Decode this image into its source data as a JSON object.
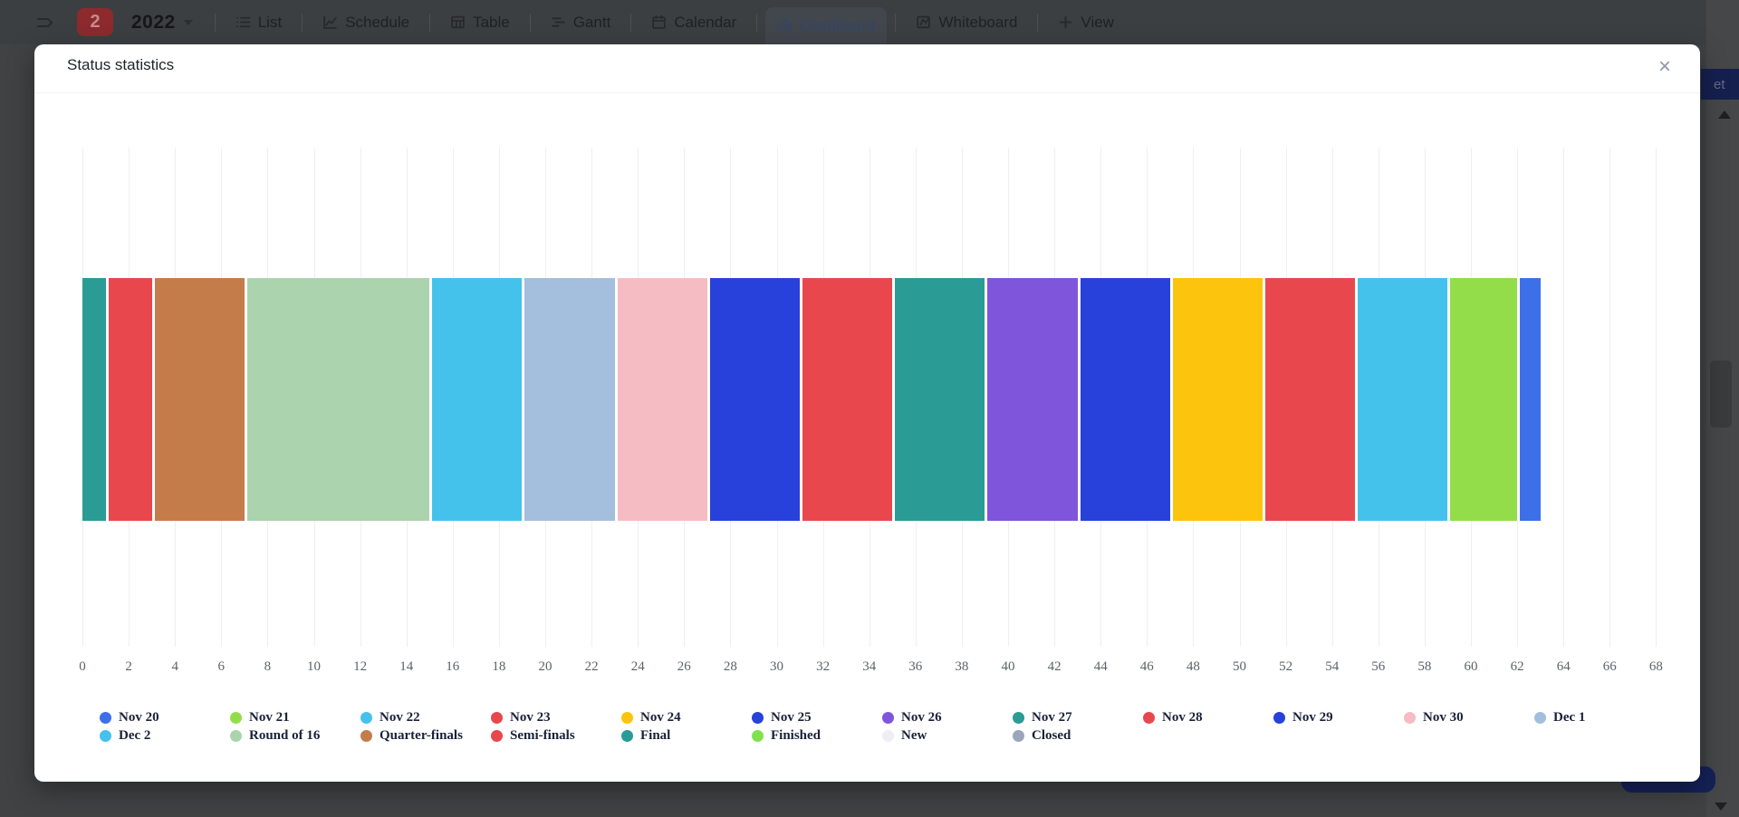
{
  "toolbar": {
    "badge_count": "2",
    "board_title": "2022",
    "tabs": [
      {
        "label": "List",
        "icon": "list-icon",
        "active": false
      },
      {
        "label": "Schedule",
        "icon": "schedule-icon",
        "active": false
      },
      {
        "label": "Table",
        "icon": "table-icon",
        "active": false
      },
      {
        "label": "Gantt",
        "icon": "gantt-icon",
        "active": false
      },
      {
        "label": "Calendar",
        "icon": "calendar-icon",
        "active": false
      },
      {
        "label": "Dashboard",
        "icon": "dashboard-icon",
        "active": true
      },
      {
        "label": "Whiteboard",
        "icon": "whiteboard-icon",
        "active": false
      }
    ],
    "add_view_label": "View"
  },
  "right_edge": {
    "button_text_partial": "et"
  },
  "modal": {
    "title": "Status statistics",
    "close_glyph": "×"
  },
  "chart_data": {
    "type": "bar",
    "orientation": "horizontal-stacked",
    "title": "Status statistics",
    "grid": true,
    "legend_position": "bottom",
    "xlim": [
      0,
      68
    ],
    "x_ticks": [
      0,
      2,
      4,
      6,
      8,
      10,
      12,
      14,
      16,
      18,
      20,
      22,
      24,
      26,
      28,
      30,
      32,
      34,
      36,
      38,
      40,
      42,
      44,
      46,
      48,
      50,
      52,
      54,
      56,
      58,
      60,
      62,
      64,
      66,
      68
    ],
    "total_stacked_value": 63,
    "segments": [
      {
        "name": "Final",
        "value": 1,
        "color": "#2A9B95"
      },
      {
        "name": "Semi-finals",
        "value": 2,
        "color": "#E8484D"
      },
      {
        "name": "Quarter-finals",
        "value": 4,
        "color": "#C47C4B"
      },
      {
        "name": "Round of 16",
        "value": 8,
        "color": "#ABD3AE"
      },
      {
        "name": "Dec 2",
        "value": 4,
        "color": "#45C2EC"
      },
      {
        "name": "Dec 1",
        "value": 4,
        "color": "#A3BFDD"
      },
      {
        "name": "Nov 30",
        "value": 4,
        "color": "#F5BDC3"
      },
      {
        "name": "Nov 29",
        "value": 4,
        "color": "#2841DA"
      },
      {
        "name": "Nov 28",
        "value": 4,
        "color": "#E8484D"
      },
      {
        "name": "Nov 27",
        "value": 4,
        "color": "#2A9B95"
      },
      {
        "name": "Nov 26",
        "value": 4,
        "color": "#7F55DB"
      },
      {
        "name": "Nov 25",
        "value": 4,
        "color": "#2841DA"
      },
      {
        "name": "Nov 24",
        "value": 4,
        "color": "#FDC40D"
      },
      {
        "name": "Nov 23",
        "value": 4,
        "color": "#E8484D"
      },
      {
        "name": "Nov 22",
        "value": 4,
        "color": "#45C2EC"
      },
      {
        "name": "Nov 21",
        "value": 3,
        "color": "#93DD4A"
      },
      {
        "name": "Nov 20",
        "value": 1,
        "color": "#3D70E8"
      }
    ],
    "legend": [
      {
        "label": "Nov 20",
        "value": 1,
        "color": "#3D70E8"
      },
      {
        "label": "Nov 21",
        "value": 3,
        "color": "#93DD4A"
      },
      {
        "label": "Nov 22",
        "value": 4,
        "color": "#45C2EC"
      },
      {
        "label": "Nov 23",
        "value": 4,
        "color": "#E8484D"
      },
      {
        "label": "Nov 24",
        "value": 4,
        "color": "#FDC40D"
      },
      {
        "label": "Nov 25",
        "value": 4,
        "color": "#2841DA"
      },
      {
        "label": "Nov 26",
        "value": 4,
        "color": "#7F55DB"
      },
      {
        "label": "Nov 27",
        "value": 4,
        "color": "#2A9B95"
      },
      {
        "label": "Nov 28",
        "value": 4,
        "color": "#E8484D"
      },
      {
        "label": "Nov 29",
        "value": 4,
        "color": "#2841DA"
      },
      {
        "label": "Nov 30",
        "value": 4,
        "color": "#F5BDC3"
      },
      {
        "label": "Dec 1",
        "value": 4,
        "color": "#A3BFDD"
      },
      {
        "label": "Dec 2",
        "value": 4,
        "color": "#45C2EC"
      },
      {
        "label": "Round of 16",
        "value": 8,
        "color": "#ABD3AE"
      },
      {
        "label": "Quarter-finals",
        "value": 4,
        "color": "#C47C4B"
      },
      {
        "label": "Semi-finals",
        "value": 2,
        "color": "#E8484D"
      },
      {
        "label": "Final",
        "value": 1,
        "color": "#2A9B95"
      },
      {
        "label": "Finished",
        "value": 0,
        "color": "#7FE24D"
      },
      {
        "label": "New",
        "value": 0,
        "color": "#EEEEF4"
      },
      {
        "label": "Closed",
        "value": 0,
        "color": "#9CA6BB"
      }
    ]
  }
}
